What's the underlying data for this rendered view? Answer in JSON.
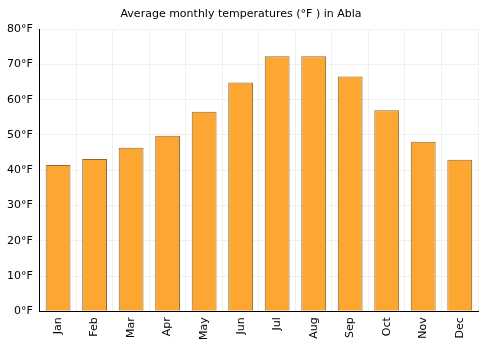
{
  "chart_data": {
    "type": "bar",
    "title": "Average monthly temperatures (°F ) in Abla",
    "categories": [
      "Jan",
      "Feb",
      "Mar",
      "Apr",
      "May",
      "Jun",
      "Jul",
      "Aug",
      "Sep",
      "Oct",
      "Nov",
      "Dec"
    ],
    "values": [
      41.5,
      43.2,
      46.4,
      49.8,
      56.6,
      64.9,
      72.3,
      72.3,
      66.6,
      57.0,
      48.1,
      43.0
    ],
    "color": "#fda631",
    "ylim": [
      0,
      80
    ],
    "yticks": [
      {
        "value": 0,
        "label": "0°F"
      },
      {
        "value": 10,
        "label": "10°F"
      },
      {
        "value": 20,
        "label": "20°F"
      },
      {
        "value": 30,
        "label": "30°F"
      },
      {
        "value": 40,
        "label": "40°F"
      },
      {
        "value": 50,
        "label": "50°F"
      },
      {
        "value": 60,
        "label": "60°F"
      },
      {
        "value": 70,
        "label": "70°F"
      },
      {
        "value": 80,
        "label": "80°F"
      }
    ],
    "grid": true
  }
}
